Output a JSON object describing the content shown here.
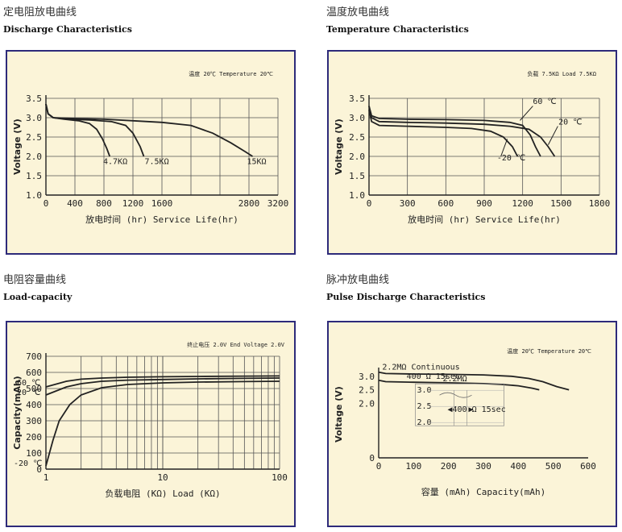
{
  "headings": {
    "c1_cn": "定电阻放电曲线",
    "c1_en": "Discharge Characteristics",
    "c2_cn": "温度放电曲线",
    "c2_en": "Temperature Characteristics",
    "c3_cn": "电阻容量曲线",
    "c3_en": "Load-capacity",
    "c4_cn": "脉冲放电曲线",
    "c4_en": "Pulse Discharge Characteristics"
  },
  "chart_data": [
    {
      "type": "line",
      "title": "Discharge Characteristics",
      "condition": "温度 20℃ Temperature 20℃",
      "xlabel": "放电时间 (hr) Service Life(hr)",
      "ylabel": "Voltage (V)",
      "xlim": [
        0,
        3200
      ],
      "ylim": [
        1.0,
        3.5
      ],
      "xticks": [
        0,
        400,
        800,
        1200,
        1600,
        2800,
        3200
      ],
      "xtick_labels": [
        "0",
        "400",
        "800",
        "1200",
        "1600",
        "2800",
        "3200"
      ],
      "xgrid": [
        0,
        400,
        800,
        1200,
        1600,
        2000,
        2400,
        2800,
        3200
      ],
      "yticks": [
        1.0,
        1.5,
        2.0,
        2.5,
        3.0,
        3.5
      ],
      "ytick_labels": [
        "1.0",
        "1.5",
        "2.0",
        "2.5",
        "3.0",
        "3.5"
      ],
      "grid": true,
      "series": [
        {
          "name": "4.7KΩ",
          "x": [
            0,
            30,
            100,
            250,
            450,
            600,
            700,
            780,
            840,
            880
          ],
          "y": [
            3.35,
            3.1,
            3.0,
            2.96,
            2.92,
            2.85,
            2.7,
            2.45,
            2.2,
            2.0
          ]
        },
        {
          "name": "7.5KΩ",
          "x": [
            0,
            30,
            100,
            300,
            600,
            900,
            1100,
            1200,
            1300,
            1350
          ],
          "y": [
            3.35,
            3.1,
            3.0,
            2.96,
            2.94,
            2.9,
            2.8,
            2.6,
            2.25,
            2.0
          ]
        },
        {
          "name": "15KΩ",
          "x": [
            0,
            30,
            100,
            400,
            800,
            1200,
            1600,
            2000,
            2300,
            2550,
            2750,
            2850
          ],
          "y": [
            3.35,
            3.1,
            3.0,
            2.98,
            2.96,
            2.92,
            2.88,
            2.8,
            2.6,
            2.35,
            2.12,
            2.0
          ]
        }
      ],
      "annotations": [
        {
          "text": "4.7KΩ",
          "x": 900,
          "y": 1.8
        },
        {
          "text": "7.5KΩ",
          "x": 1450,
          "y": 1.8
        },
        {
          "text": "15KΩ",
          "x": 2950,
          "y": 1.8
        }
      ]
    },
    {
      "type": "line",
      "title": "Temperature Characteristics",
      "condition": "负载 7.5KΩ Load 7.5KΩ",
      "xlabel": "放电时间 (hr) Service Life(hr)",
      "ylabel": "Voltage (V)",
      "xlim": [
        0,
        1800
      ],
      "ylim": [
        1.0,
        3.5
      ],
      "xticks": [
        0,
        300,
        600,
        900,
        1200,
        1500,
        1800
      ],
      "xtick_labels": [
        "0",
        "300",
        "600",
        "900",
        "1200",
        "1500",
        "1800"
      ],
      "xgrid": [
        0,
        300,
        600,
        900,
        1200,
        1500,
        1800
      ],
      "yticks": [
        1.0,
        1.5,
        2.0,
        2.5,
        3.0,
        3.5
      ],
      "ytick_labels": [
        "1.0",
        "1.5",
        "2.0",
        "2.5",
        "3.0",
        "3.5"
      ],
      "grid": true,
      "series": [
        {
          "name": "60 ℃",
          "x": [
            0,
            20,
            80,
            300,
            600,
            900,
            1100,
            1200,
            1260,
            1300,
            1340
          ],
          "y": [
            3.3,
            3.05,
            2.98,
            2.96,
            2.95,
            2.93,
            2.88,
            2.8,
            2.55,
            2.25,
            2.0
          ]
        },
        {
          "name": "20 ℃",
          "x": [
            0,
            20,
            80,
            300,
            600,
            900,
            1100,
            1250,
            1340,
            1400,
            1450
          ],
          "y": [
            3.3,
            3.0,
            2.9,
            2.88,
            2.86,
            2.83,
            2.78,
            2.7,
            2.5,
            2.25,
            2.0
          ]
        },
        {
          "name": "-20 ℃",
          "x": [
            0,
            20,
            80,
            300,
            600,
            800,
            950,
            1050,
            1120,
            1160
          ],
          "y": [
            3.2,
            2.9,
            2.8,
            2.78,
            2.75,
            2.72,
            2.65,
            2.5,
            2.25,
            2.0
          ]
        }
      ],
      "annotations": [
        {
          "text": "60 ℃",
          "x": 1280,
          "y": 3.35
        },
        {
          "text": "20 ℃",
          "x": 1480,
          "y": 2.82
        },
        {
          "text": "-20 ℃",
          "x": 1000,
          "y": 1.9
        }
      ]
    },
    {
      "type": "line",
      "title": "Load-capacity",
      "condition": "终止电压 2.0V End Voltage 2.0V",
      "xlabel": "负载电阻 (KΩ) Load (KΩ)",
      "ylabel": "Capacity(mAh)",
      "xscale": "log",
      "xlim": [
        1,
        100
      ],
      "ylim": [
        0,
        700
      ],
      "xticks": [
        1,
        10,
        100
      ],
      "xtick_labels": [
        "1",
        "10",
        "100"
      ],
      "yticks": [
        0,
        100,
        200,
        300,
        400,
        500,
        600,
        700
      ],
      "ytick_labels": [
        "0",
        "100",
        "200",
        "300",
        "400",
        "500",
        "600",
        "700"
      ],
      "grid": true,
      "series": [
        {
          "name": "60 ℃",
          "x": [
            1,
            1.5,
            2,
            3,
            5,
            10,
            20,
            50,
            100
          ],
          "y": [
            510,
            545,
            558,
            565,
            570,
            573,
            575,
            577,
            578
          ]
        },
        {
          "name": "20 ℃",
          "x": [
            1,
            1.5,
            2,
            3,
            5,
            10,
            20,
            50,
            100
          ],
          "y": [
            460,
            510,
            530,
            545,
            552,
            556,
            560,
            563,
            565
          ]
        },
        {
          "name": "-20 ℃",
          "x": [
            1,
            1.15,
            1.3,
            1.6,
            2,
            3,
            5,
            10,
            20,
            50,
            100
          ],
          "y": [
            20,
            180,
            300,
            400,
            460,
            505,
            525,
            535,
            540,
            543,
            545
          ]
        }
      ],
      "annotations": [
        {
          "text": "60 ℃",
          "x": 1,
          "y": 520
        },
        {
          "text": "20 ℃",
          "x": 1,
          "y": 460
        },
        {
          "text": "-20 ℃",
          "x": 1,
          "y": 40
        }
      ]
    },
    {
      "type": "line",
      "title": "Pulse Discharge Characteristics",
      "condition": "温度 20℃ Temperature 20℃",
      "xlabel": "容量 (mAh) Capacity(mAh)",
      "ylabel": "Voltage (V)",
      "xlim": [
        0,
        600
      ],
      "ylim": [
        0,
        3.2
      ],
      "xticks": [
        0,
        100,
        200,
        300,
        400,
        500,
        600
      ],
      "xtick_labels": [
        "0",
        "100",
        "200",
        "300",
        "400",
        "500",
        "600"
      ],
      "yticks": [
        0,
        2.0,
        2.5,
        3.0
      ],
      "ytick_labels": [
        "0",
        "2.0",
        "2.5",
        "3.0"
      ],
      "grid": false,
      "series": [
        {
          "name": "2.2MΩ Continuous",
          "x": [
            0,
            20,
            100,
            200,
            300,
            380,
            430,
            470,
            510,
            545
          ],
          "y": [
            3.15,
            3.1,
            3.08,
            3.07,
            3.05,
            3.0,
            2.92,
            2.8,
            2.62,
            2.5
          ]
        },
        {
          "name": "400 Ω 15sec",
          "x": [
            0,
            20,
            100,
            200,
            300,
            350,
            400,
            440,
            460
          ],
          "y": [
            2.85,
            2.8,
            2.78,
            2.76,
            2.73,
            2.7,
            2.65,
            2.56,
            2.5
          ]
        }
      ],
      "inset": {
        "label_top": "2.2MΩ",
        "label_pulse": "400 Ω 15sec",
        "yticks": [
          "3.0",
          "2.5",
          "2.0"
        ]
      }
    }
  ]
}
